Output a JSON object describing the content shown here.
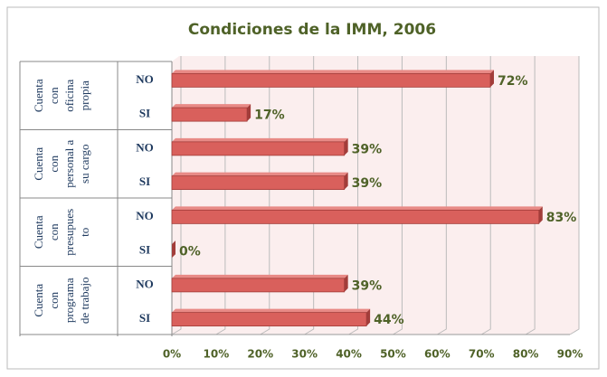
{
  "chart_data": {
    "type": "bar",
    "orientation": "horizontal",
    "title": "Condiciones de la IMM, 2006",
    "groups": [
      {
        "lines": [
          "Cuenta",
          "con",
          "oficina",
          "propia"
        ]
      },
      {
        "lines": [
          "Cuenta",
          "con",
          "personal a",
          "su cargo"
        ]
      },
      {
        "lines": [
          "Cuenta",
          "con",
          "presupues",
          "to"
        ]
      },
      {
        "lines": [
          "Cuenta",
          "con",
          "programa",
          "de trabajo"
        ]
      }
    ],
    "categories": [
      "NO",
      "SI",
      "NO",
      "SI",
      "NO",
      "SI",
      "NO",
      "SI"
    ],
    "values": [
      72,
      17,
      39,
      39,
      83,
      0,
      39,
      44
    ],
    "value_labels": [
      "72%",
      "17%",
      "39%",
      "39%",
      "83%",
      "0%",
      "39%",
      "44%"
    ],
    "color": "#d9605c",
    "xlim": [
      0,
      90
    ],
    "xticks": [
      {
        "value": 0,
        "label": "0%"
      },
      {
        "value": 10,
        "label": "10%"
      },
      {
        "value": 20,
        "label": "20%"
      },
      {
        "value": 30,
        "label": "30%"
      },
      {
        "value": 40,
        "label": "40%"
      },
      {
        "value": 50,
        "label": "50%"
      },
      {
        "value": 60,
        "label": "60%"
      },
      {
        "value": 70,
        "label": "70%"
      },
      {
        "value": 80,
        "label": "80%"
      },
      {
        "value": 90,
        "label": "90%"
      }
    ],
    "grid": true
  }
}
